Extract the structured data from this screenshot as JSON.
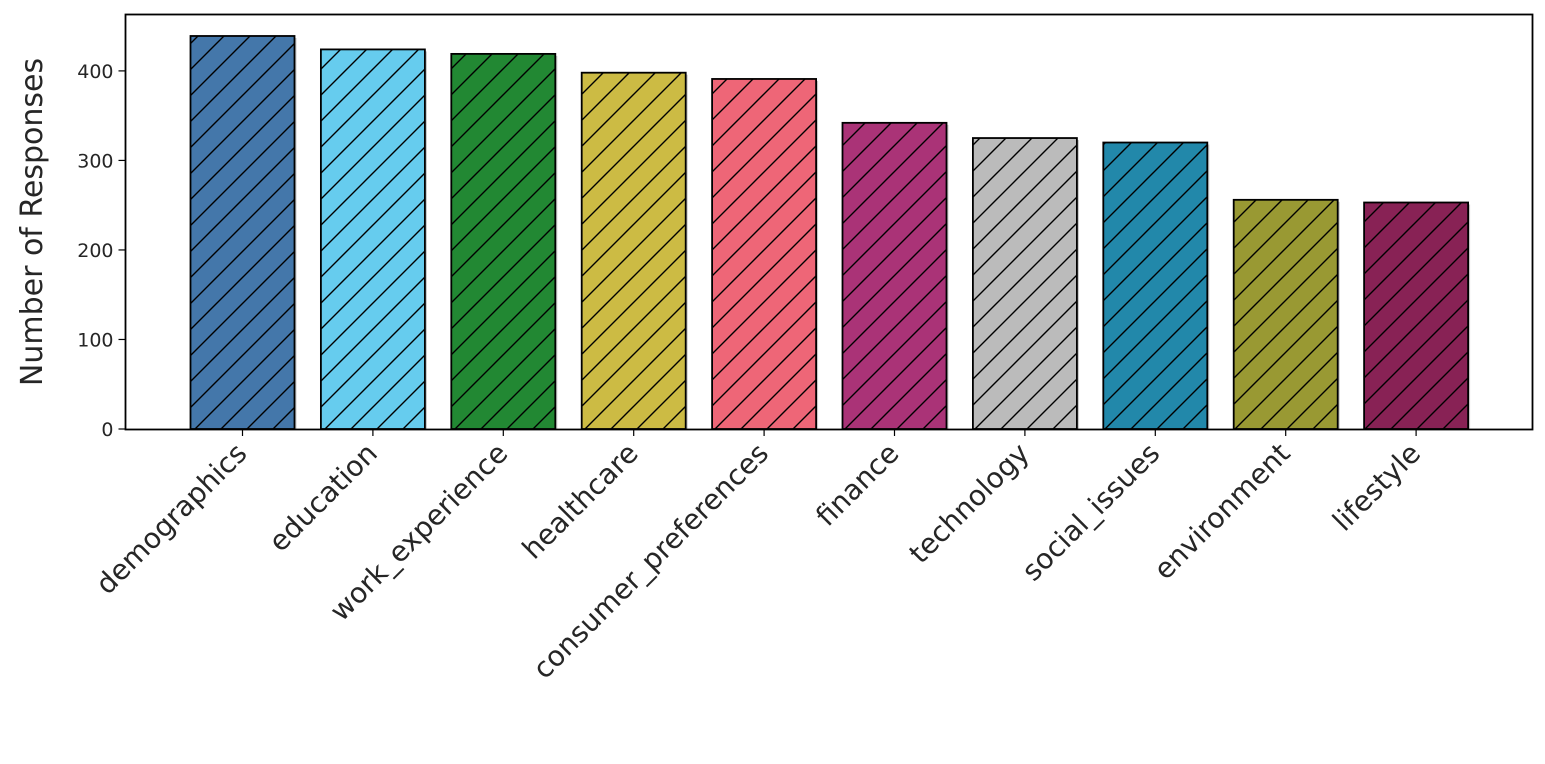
{
  "chart_data": {
    "type": "bar",
    "title": "",
    "xlabel": "",
    "ylabel": "Number of Responses",
    "ylim": [
      0,
      463
    ],
    "yticks": [
      0,
      100,
      200,
      300,
      400
    ],
    "grid": false,
    "legend": null,
    "hatch": "diagonal-forward",
    "categories": [
      "demographics",
      "education",
      "work_experience",
      "healthcare",
      "consumer_preferences",
      "finance",
      "technology",
      "social_issues",
      "environment",
      "lifestyle"
    ],
    "values": [
      439,
      424,
      419,
      398,
      391,
      342,
      325,
      320,
      256,
      253
    ],
    "colors": [
      "#4477AA",
      "#66CCEE",
      "#228833",
      "#CCBB44",
      "#EE6677",
      "#AA3377",
      "#BBBBBB",
      "#2288AA",
      "#999933",
      "#882255"
    ]
  }
}
